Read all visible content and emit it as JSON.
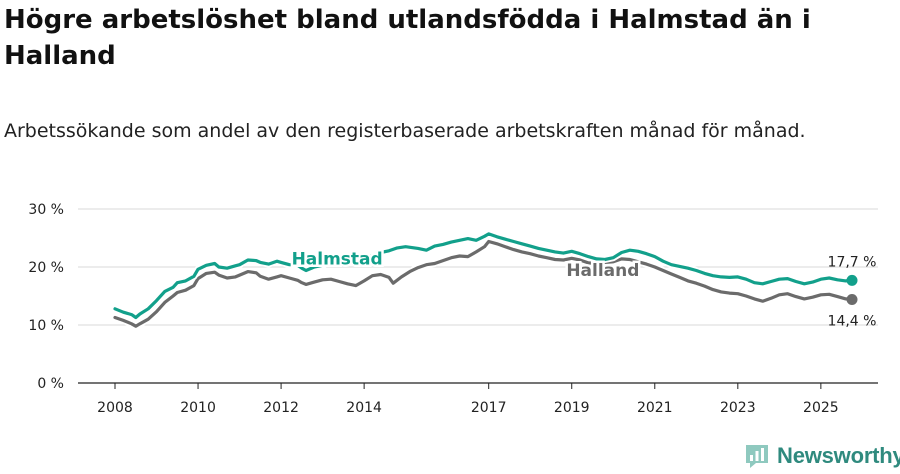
{
  "header": {
    "title": "Högre arbetslöshet bland utlandsfödda i Halmstad än i Halland",
    "subtitle": "Arbetssökande som andel av den registerbaserade arbetskraften månad för månad."
  },
  "brand": {
    "name": "Newsworthy",
    "icon": "bar-chart-logo-icon"
  },
  "colors": {
    "halmstad": "#12a08b",
    "halland": "#6b6b6b",
    "grid": "#d8d8d8",
    "axis": "#222222"
  },
  "chart_data": {
    "type": "line",
    "title": "Högre arbetslöshet bland utlandsfödda i Halmstad än i Halland",
    "xlabel": "",
    "ylabel": "",
    "xlim": [
      2008,
      2026.3
    ],
    "ylim": [
      0,
      30
    ],
    "yticks": [
      0,
      10,
      20,
      30
    ],
    "ytick_labels": [
      "0 %",
      "10 %",
      "20 %",
      "30 %"
    ],
    "xticks": [
      2008,
      2010,
      2012,
      2014,
      2017,
      2019,
      2021,
      2023,
      2025
    ],
    "xtick_labels": [
      "2008",
      "2010",
      "2012",
      "2014",
      "2017",
      "2019",
      "2021",
      "2023",
      "2025"
    ],
    "grid": true,
    "series": [
      {
        "name": "Halmstad",
        "color": "#12a08b",
        "end_label": "17,7 %",
        "points": [
          [
            2008.0,
            12.8
          ],
          [
            2008.2,
            12.2
          ],
          [
            2008.4,
            11.8
          ],
          [
            2008.5,
            11.3
          ],
          [
            2008.6,
            11.9
          ],
          [
            2008.8,
            12.8
          ],
          [
            2009.0,
            14.2
          ],
          [
            2009.2,
            15.8
          ],
          [
            2009.4,
            16.5
          ],
          [
            2009.5,
            17.3
          ],
          [
            2009.7,
            17.6
          ],
          [
            2009.9,
            18.4
          ],
          [
            2010.0,
            19.6
          ],
          [
            2010.2,
            20.3
          ],
          [
            2010.4,
            20.6
          ],
          [
            2010.5,
            20.0
          ],
          [
            2010.7,
            19.8
          ],
          [
            2010.9,
            20.2
          ],
          [
            2011.0,
            20.4
          ],
          [
            2011.2,
            21.2
          ],
          [
            2011.4,
            21.1
          ],
          [
            2011.5,
            20.8
          ],
          [
            2011.7,
            20.5
          ],
          [
            2011.9,
            21.0
          ],
          [
            2012.0,
            20.8
          ],
          [
            2012.2,
            20.4
          ],
          [
            2012.4,
            20.3
          ],
          [
            2012.5,
            19.8
          ],
          [
            2012.6,
            19.4
          ],
          [
            2012.8,
            20.0
          ],
          [
            2013.0,
            20.3
          ],
          [
            2013.2,
            21.2
          ],
          [
            2013.4,
            21.6
          ],
          [
            2013.6,
            21.0
          ],
          [
            2013.8,
            20.6
          ],
          [
            2014.0,
            21.3
          ],
          [
            2014.2,
            22.0
          ],
          [
            2014.4,
            22.5
          ],
          [
            2014.6,
            22.8
          ],
          [
            2014.8,
            23.3
          ],
          [
            2015.0,
            23.5
          ],
          [
            2015.3,
            23.2
          ],
          [
            2015.5,
            22.9
          ],
          [
            2015.7,
            23.6
          ],
          [
            2015.9,
            23.9
          ],
          [
            2016.1,
            24.3
          ],
          [
            2016.3,
            24.6
          ],
          [
            2016.5,
            24.9
          ],
          [
            2016.7,
            24.6
          ],
          [
            2016.9,
            25.3
          ],
          [
            2017.0,
            25.7
          ],
          [
            2017.2,
            25.2
          ],
          [
            2017.4,
            24.8
          ],
          [
            2017.6,
            24.4
          ],
          [
            2017.8,
            24.0
          ],
          [
            2018.0,
            23.6
          ],
          [
            2018.2,
            23.2
          ],
          [
            2018.4,
            22.9
          ],
          [
            2018.6,
            22.6
          ],
          [
            2018.8,
            22.4
          ],
          [
            2019.0,
            22.7
          ],
          [
            2019.2,
            22.3
          ],
          [
            2019.4,
            21.8
          ],
          [
            2019.6,
            21.4
          ],
          [
            2019.8,
            21.3
          ],
          [
            2020.0,
            21.6
          ],
          [
            2020.2,
            22.5
          ],
          [
            2020.4,
            22.9
          ],
          [
            2020.6,
            22.7
          ],
          [
            2020.8,
            22.3
          ],
          [
            2021.0,
            21.8
          ],
          [
            2021.2,
            21.0
          ],
          [
            2021.4,
            20.4
          ],
          [
            2021.6,
            20.1
          ],
          [
            2021.8,
            19.8
          ],
          [
            2022.0,
            19.4
          ],
          [
            2022.2,
            18.9
          ],
          [
            2022.4,
            18.5
          ],
          [
            2022.6,
            18.3
          ],
          [
            2022.8,
            18.2
          ],
          [
            2023.0,
            18.3
          ],
          [
            2023.2,
            17.9
          ],
          [
            2023.4,
            17.3
          ],
          [
            2023.6,
            17.1
          ],
          [
            2023.8,
            17.5
          ],
          [
            2024.0,
            17.9
          ],
          [
            2024.2,
            18.0
          ],
          [
            2024.4,
            17.5
          ],
          [
            2024.6,
            17.1
          ],
          [
            2024.8,
            17.4
          ],
          [
            2025.0,
            17.9
          ],
          [
            2025.2,
            18.1
          ],
          [
            2025.4,
            17.8
          ],
          [
            2025.6,
            17.6
          ],
          [
            2025.75,
            17.7
          ]
        ]
      },
      {
        "name": "Halland",
        "color": "#6b6b6b",
        "end_label": "14,4 %",
        "points": [
          [
            2008.0,
            11.3
          ],
          [
            2008.2,
            10.8
          ],
          [
            2008.4,
            10.2
          ],
          [
            2008.5,
            9.8
          ],
          [
            2008.6,
            10.2
          ],
          [
            2008.8,
            11.0
          ],
          [
            2009.0,
            12.3
          ],
          [
            2009.2,
            13.9
          ],
          [
            2009.4,
            15.0
          ],
          [
            2009.5,
            15.6
          ],
          [
            2009.7,
            16.0
          ],
          [
            2009.9,
            16.8
          ],
          [
            2010.0,
            18.0
          ],
          [
            2010.2,
            18.9
          ],
          [
            2010.4,
            19.1
          ],
          [
            2010.5,
            18.6
          ],
          [
            2010.7,
            18.1
          ],
          [
            2010.9,
            18.3
          ],
          [
            2011.0,
            18.6
          ],
          [
            2011.2,
            19.2
          ],
          [
            2011.4,
            19.0
          ],
          [
            2011.5,
            18.4
          ],
          [
            2011.7,
            17.9
          ],
          [
            2011.9,
            18.3
          ],
          [
            2012.0,
            18.5
          ],
          [
            2012.2,
            18.1
          ],
          [
            2012.4,
            17.7
          ],
          [
            2012.5,
            17.3
          ],
          [
            2012.6,
            17.0
          ],
          [
            2012.8,
            17.4
          ],
          [
            2013.0,
            17.8
          ],
          [
            2013.2,
            17.9
          ],
          [
            2013.4,
            17.5
          ],
          [
            2013.6,
            17.1
          ],
          [
            2013.8,
            16.8
          ],
          [
            2014.0,
            17.6
          ],
          [
            2014.2,
            18.5
          ],
          [
            2014.4,
            18.7
          ],
          [
            2014.6,
            18.2
          ],
          [
            2014.7,
            17.2
          ],
          [
            2014.9,
            18.3
          ],
          [
            2015.1,
            19.2
          ],
          [
            2015.3,
            19.9
          ],
          [
            2015.5,
            20.4
          ],
          [
            2015.7,
            20.6
          ],
          [
            2015.9,
            21.1
          ],
          [
            2016.1,
            21.6
          ],
          [
            2016.3,
            21.9
          ],
          [
            2016.5,
            21.8
          ],
          [
            2016.7,
            22.6
          ],
          [
            2016.9,
            23.5
          ],
          [
            2017.0,
            24.4
          ],
          [
            2017.2,
            24.0
          ],
          [
            2017.4,
            23.5
          ],
          [
            2017.6,
            23.0
          ],
          [
            2017.8,
            22.6
          ],
          [
            2018.0,
            22.3
          ],
          [
            2018.2,
            21.9
          ],
          [
            2018.4,
            21.6
          ],
          [
            2018.6,
            21.3
          ],
          [
            2018.8,
            21.2
          ],
          [
            2019.0,
            21.5
          ],
          [
            2019.2,
            21.2
          ],
          [
            2019.4,
            20.7
          ],
          [
            2019.6,
            20.6
          ],
          [
            2019.8,
            20.8
          ],
          [
            2020.0,
            20.9
          ],
          [
            2020.2,
            21.4
          ],
          [
            2020.4,
            21.3
          ],
          [
            2020.6,
            20.9
          ],
          [
            2020.8,
            20.5
          ],
          [
            2021.0,
            20.0
          ],
          [
            2021.2,
            19.4
          ],
          [
            2021.4,
            18.8
          ],
          [
            2021.6,
            18.2
          ],
          [
            2021.8,
            17.6
          ],
          [
            2022.0,
            17.2
          ],
          [
            2022.2,
            16.7
          ],
          [
            2022.4,
            16.1
          ],
          [
            2022.6,
            15.7
          ],
          [
            2022.8,
            15.5
          ],
          [
            2023.0,
            15.4
          ],
          [
            2023.2,
            15.0
          ],
          [
            2023.4,
            14.5
          ],
          [
            2023.6,
            14.1
          ],
          [
            2023.8,
            14.6
          ],
          [
            2024.0,
            15.2
          ],
          [
            2024.2,
            15.4
          ],
          [
            2024.4,
            14.9
          ],
          [
            2024.6,
            14.5
          ],
          [
            2024.8,
            14.8
          ],
          [
            2025.0,
            15.2
          ],
          [
            2025.2,
            15.3
          ],
          [
            2025.4,
            14.9
          ],
          [
            2025.6,
            14.5
          ],
          [
            2025.75,
            14.4
          ]
        ]
      }
    ]
  }
}
